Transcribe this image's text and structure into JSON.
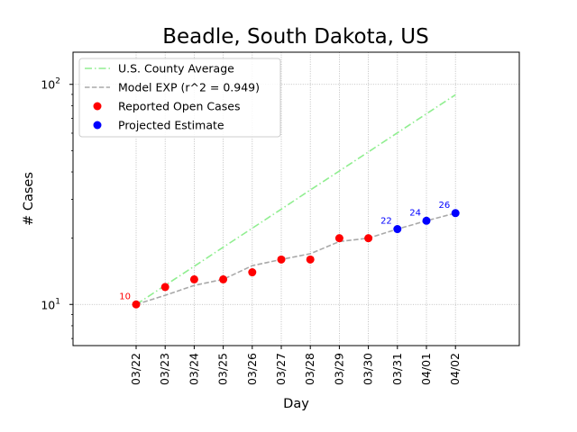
{
  "chart_data": {
    "type": "line",
    "title": "Beadle, South Dakota, US",
    "xlabel": "Day",
    "ylabel": "# Cases",
    "yscale": "log",
    "ylim": [
      6.5,
      140
    ],
    "grid": true,
    "legend_position": "top-left",
    "categories": [
      "03/22",
      "03/23",
      "03/24",
      "03/25",
      "03/26",
      "03/27",
      "03/28",
      "03/29",
      "03/30",
      "03/31",
      "04/01",
      "04/02"
    ],
    "y_ticks": [
      {
        "value": 10,
        "base": "10",
        "exp": "1"
      },
      {
        "value": 100,
        "base": "10",
        "exp": "2"
      }
    ],
    "series": [
      {
        "name": "U.S. County Average",
        "kind": "line",
        "style": "dashdot",
        "color": "#90ee90",
        "values": [
          10,
          12.2,
          14.9,
          18.2,
          22.2,
          27.1,
          33.1,
          40.4,
          49.3,
          60.2,
          73.5,
          89.7
        ]
      },
      {
        "name": "Model EXP (r^2 = 0.949)",
        "kind": "line",
        "style": "dashed",
        "color": "#a9a9a9",
        "values": [
          10,
          11,
          12.2,
          13,
          15,
          16,
          17,
          19.3,
          20,
          22,
          24,
          26
        ]
      },
      {
        "name": "Reported Open Cases",
        "kind": "scatter",
        "color": "#ff0000",
        "x_indices": [
          0,
          1,
          2,
          3,
          4,
          5,
          6,
          7,
          8
        ],
        "values": [
          10,
          12,
          13,
          13,
          14,
          16,
          16,
          20,
          20
        ]
      },
      {
        "name": "Projected Estimate",
        "kind": "scatter",
        "color": "#0000ff",
        "x_indices": [
          9,
          10,
          11
        ],
        "values": [
          22,
          24,
          26
        ]
      }
    ],
    "annotations": [
      {
        "text": "10",
        "x_index": 0,
        "value": 10,
        "color": "#ff0000"
      },
      {
        "text": "22",
        "x_index": 9,
        "value": 22,
        "color": "#0000ff"
      },
      {
        "text": "24",
        "x_index": 10,
        "value": 24,
        "color": "#0000ff"
      },
      {
        "text": "26",
        "x_index": 11,
        "value": 26,
        "color": "#0000ff"
      }
    ]
  }
}
